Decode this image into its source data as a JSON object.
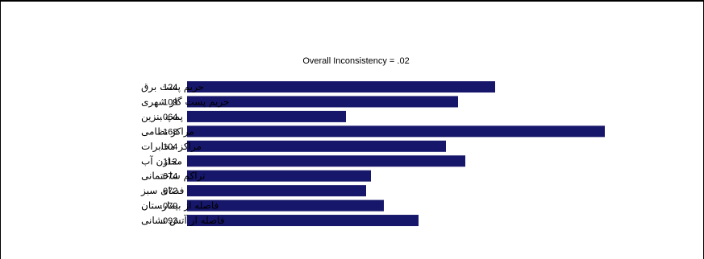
{
  "chart_data": {
    "type": "bar",
    "orientation": "horizontal",
    "title": "Overall Inconsistency = .02",
    "categories": [
      "حریم پست برق",
      "حریم پست گاز شهری",
      "پمپ بنزین",
      "مراکز نظامی",
      "مراکز مخابرات",
      "مخازن آب",
      "تراکم ساختمانی",
      "فضای سبز",
      "فاصله از بیمارستان",
      "فاصله از آتش نشانی"
    ],
    "values": [
      0.124,
      0.109,
      0.064,
      0.168,
      0.104,
      0.112,
      0.074,
      0.072,
      0.079,
      0.093
    ],
    "value_labels": [
      ".124",
      ".109",
      ".064",
      ".168",
      ".104",
      ".112",
      ".074",
      ".072",
      ".079",
      ".093"
    ],
    "bar_color": "#16166b",
    "grid": false
  }
}
